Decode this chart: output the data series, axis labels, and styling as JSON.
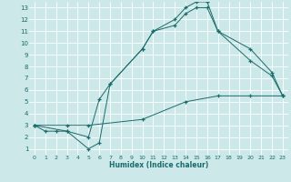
{
  "xlabel": "Humidex (Indice chaleur)",
  "bg_color": "#cce8e8",
  "grid_color": "#ffffff",
  "line_color": "#1a6b6b",
  "xlim": [
    -0.5,
    23.5
  ],
  "ylim": [
    0.5,
    13.5
  ],
  "xticks": [
    0,
    1,
    2,
    3,
    4,
    5,
    6,
    7,
    8,
    9,
    10,
    11,
    12,
    13,
    14,
    15,
    16,
    17,
    18,
    19,
    20,
    21,
    22,
    23
  ],
  "yticks": [
    1,
    2,
    3,
    4,
    5,
    6,
    7,
    8,
    9,
    10,
    11,
    12,
    13
  ],
  "line1_x": [
    0,
    1,
    2,
    3,
    5,
    6,
    7,
    10,
    11,
    13,
    14,
    15,
    16,
    17,
    20,
    22,
    23
  ],
  "line1_y": [
    3,
    2.5,
    2.5,
    2.5,
    1,
    1.5,
    6.5,
    9.5,
    11,
    12,
    13,
    13.5,
    13.5,
    11,
    9.5,
    7.5,
    5.5
  ],
  "line2_x": [
    0,
    3,
    5,
    6,
    7,
    10,
    11,
    13,
    14,
    15,
    16,
    17,
    20,
    22,
    23
  ],
  "line2_y": [
    3,
    2.5,
    2,
    5.2,
    6.5,
    9.5,
    11,
    11.5,
    12.5,
    13,
    13,
    11,
    8.5,
    7.2,
    5.5
  ],
  "line3_x": [
    0,
    3,
    5,
    10,
    14,
    17,
    20,
    23
  ],
  "line3_y": [
    3,
    3,
    3,
    3.5,
    5,
    5.5,
    5.5,
    5.5
  ]
}
